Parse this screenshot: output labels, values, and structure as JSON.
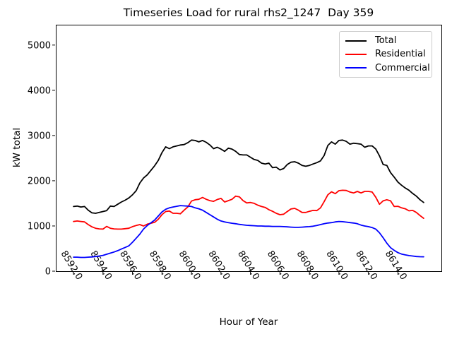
{
  "chart_data": {
    "type": "line",
    "title": "Timeseries Load for rural rhs2_1247  Day 359",
    "xlabel": "Hour of Year",
    "ylabel": "kW total",
    "grid": false,
    "legend_position": "upper right",
    "xlim": [
      8590.8,
      8616.95
    ],
    "ylim": [
      0,
      5450
    ],
    "xticks": [
      8592,
      8594,
      8596,
      8598,
      8600,
      8602,
      8604,
      8606,
      8608,
      8610,
      8612,
      8614
    ],
    "xtick_labels": [
      "8592.0",
      "8594.0",
      "8596.0",
      "8598.0",
      "8600.0",
      "8602.0",
      "8604.0",
      "8606.0",
      "8608.0",
      "8610.0",
      "8612.0",
      "8614.0"
    ],
    "yticks": [
      0,
      1000,
      2000,
      3000,
      4000,
      5000
    ],
    "ytick_labels": [
      "0",
      "1000",
      "2000",
      "3000",
      "4000",
      "5000"
    ],
    "x": [
      8592.0,
      8592.25,
      8592.5,
      8592.75,
      8593.0,
      8593.25,
      8593.5,
      8593.75,
      8594.0,
      8594.25,
      8594.5,
      8594.75,
      8595.0,
      8595.25,
      8595.5,
      8595.75,
      8596.0,
      8596.25,
      8596.5,
      8596.75,
      8597.0,
      8597.25,
      8597.5,
      8597.75,
      8598.0,
      8598.25,
      8598.5,
      8598.75,
      8599.0,
      8599.25,
      8599.5,
      8599.75,
      8600.0,
      8600.25,
      8600.5,
      8600.75,
      8601.0,
      8601.25,
      8601.5,
      8601.75,
      8602.0,
      8602.25,
      8602.5,
      8602.75,
      8603.0,
      8603.25,
      8603.5,
      8603.75,
      8604.0,
      8604.25,
      8604.5,
      8604.75,
      8605.0,
      8605.25,
      8605.5,
      8605.75,
      8606.0,
      8606.25,
      8606.5,
      8606.75,
      8607.0,
      8607.25,
      8607.5,
      8607.75,
      8608.0,
      8608.25,
      8608.5,
      8608.75,
      8609.0,
      8609.25,
      8609.5,
      8609.75,
      8610.0,
      8610.25,
      8610.5,
      8610.75,
      8611.0,
      8611.25,
      8611.5,
      8611.75,
      8612.0,
      8612.25,
      8612.5,
      8612.75,
      8613.0,
      8613.25,
      8613.5,
      8613.75,
      8614.0,
      8614.25,
      8614.5,
      8614.75,
      8615.0,
      8615.25,
      8615.5,
      8615.75
    ],
    "series": [
      {
        "name": "Total",
        "color": "#000000",
        "values": [
          1430,
          1440,
          1420,
          1430,
          1350,
          1290,
          1280,
          1300,
          1320,
          1340,
          1440,
          1430,
          1480,
          1530,
          1570,
          1620,
          1690,
          1780,
          1950,
          2060,
          2130,
          2230,
          2330,
          2450,
          2620,
          2750,
          2710,
          2750,
          2770,
          2790,
          2800,
          2840,
          2900,
          2890,
          2860,
          2890,
          2850,
          2790,
          2710,
          2740,
          2700,
          2650,
          2720,
          2700,
          2650,
          2580,
          2570,
          2570,
          2520,
          2470,
          2450,
          2390,
          2370,
          2390,
          2290,
          2300,
          2240,
          2270,
          2360,
          2410,
          2420,
          2390,
          2340,
          2320,
          2340,
          2370,
          2400,
          2440,
          2560,
          2780,
          2860,
          2810,
          2890,
          2900,
          2870,
          2810,
          2830,
          2820,
          2810,
          2740,
          2770,
          2770,
          2700,
          2550,
          2360,
          2340,
          2180,
          2080,
          1970,
          1900,
          1840,
          1790,
          1720,
          1660,
          1580,
          1520
        ]
      },
      {
        "name": "Residential",
        "color": "#ff0000",
        "values": [
          1100,
          1110,
          1100,
          1090,
          1030,
          980,
          950,
          935,
          930,
          990,
          950,
          935,
          930,
          930,
          940,
          950,
          985,
          1010,
          1030,
          1000,
          1040,
          1060,
          1080,
          1150,
          1250,
          1320,
          1330,
          1280,
          1280,
          1270,
          1350,
          1420,
          1550,
          1580,
          1590,
          1630,
          1590,
          1560,
          1545,
          1585,
          1610,
          1530,
          1560,
          1590,
          1660,
          1645,
          1560,
          1510,
          1520,
          1500,
          1460,
          1430,
          1410,
          1360,
          1325,
          1280,
          1250,
          1260,
          1320,
          1375,
          1390,
          1350,
          1300,
          1300,
          1325,
          1345,
          1340,
          1400,
          1540,
          1690,
          1755,
          1715,
          1780,
          1790,
          1785,
          1750,
          1730,
          1765,
          1730,
          1765,
          1765,
          1750,
          1635,
          1480,
          1555,
          1580,
          1555,
          1430,
          1435,
          1400,
          1380,
          1335,
          1345,
          1300,
          1230,
          1170
        ]
      },
      {
        "name": "Commercial",
        "color": "#0000ff",
        "values": [
          310,
          310,
          305,
          305,
          310,
          315,
          325,
          335,
          350,
          375,
          400,
          425,
          455,
          490,
          525,
          560,
          640,
          730,
          820,
          930,
          1010,
          1070,
          1130,
          1220,
          1310,
          1370,
          1400,
          1420,
          1435,
          1450,
          1445,
          1440,
          1430,
          1400,
          1380,
          1350,
          1300,
          1250,
          1200,
          1150,
          1110,
          1090,
          1075,
          1060,
          1050,
          1035,
          1025,
          1015,
          1010,
          1005,
          1000,
          1000,
          995,
          995,
          990,
          990,
          990,
          985,
          980,
          975,
          970,
          970,
          975,
          980,
          985,
          995,
          1010,
          1030,
          1050,
          1065,
          1075,
          1090,
          1100,
          1095,
          1085,
          1075,
          1065,
          1050,
          1020,
          1000,
          985,
          965,
          930,
          850,
          740,
          620,
          520,
          460,
          410,
          380,
          360,
          345,
          335,
          325,
          320,
          318
        ]
      }
    ]
  }
}
